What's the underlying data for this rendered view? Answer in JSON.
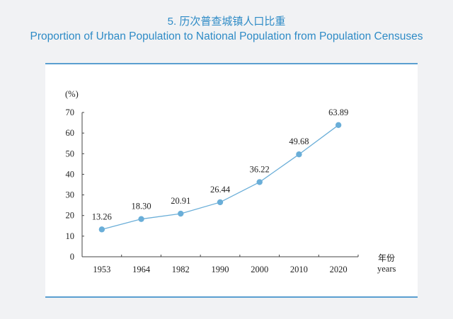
{
  "title_cn": "5. 历次普查城镇人口比重",
  "title_en": "Proportion of Urban Population to National Population from Population Censuses",
  "chart_data": {
    "type": "line",
    "categories": [
      "1953",
      "1964",
      "1982",
      "1990",
      "2000",
      "2010",
      "2020"
    ],
    "values": [
      13.26,
      18.3,
      20.91,
      26.44,
      36.22,
      49.68,
      63.89
    ],
    "data_labels": [
      "13.26",
      "18.30",
      "20.91",
      "26.44",
      "36.22",
      "49.68",
      "63.89"
    ],
    "ylabel": "(%)",
    "xlabel_cn": "年份",
    "xlabel_en": "years",
    "ylim": [
      0,
      70
    ],
    "yticks": [
      "0",
      "10",
      "20",
      "30",
      "40",
      "50",
      "60",
      "70"
    ],
    "grid": false,
    "color": "#6aaed8"
  }
}
